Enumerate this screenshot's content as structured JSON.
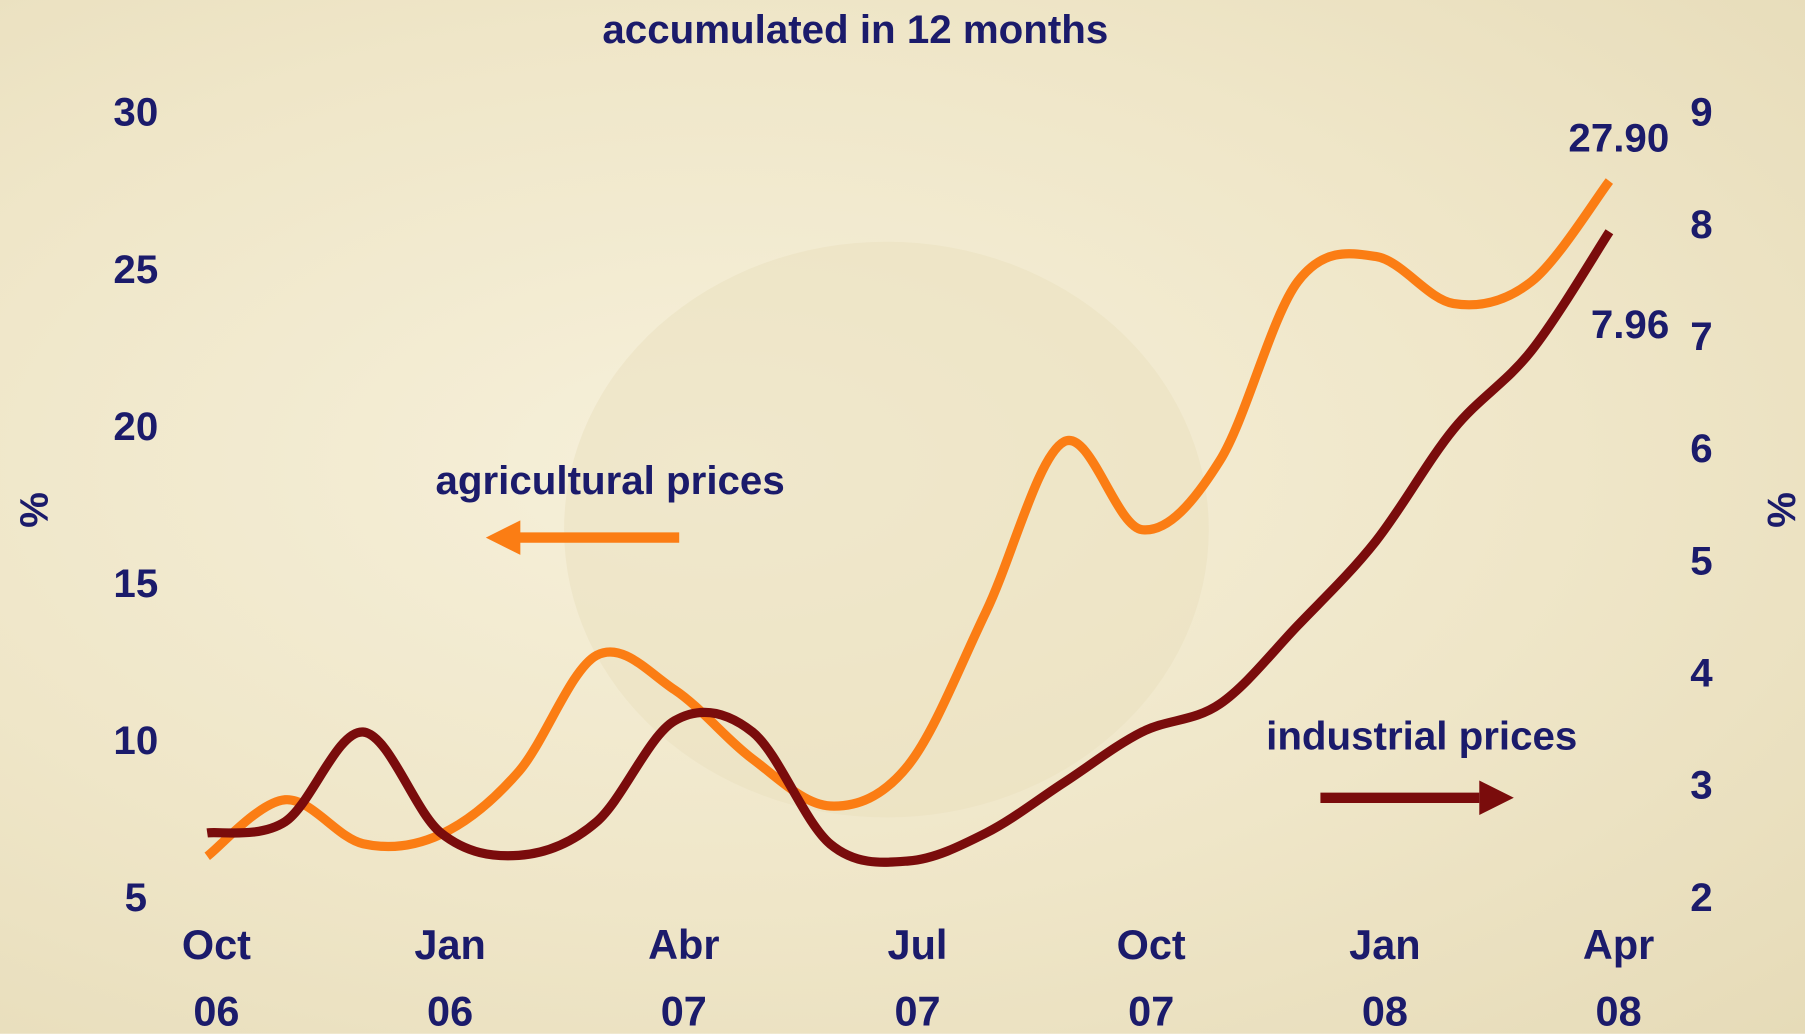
{
  "chart_data": {
    "type": "line",
    "title": "accumulated in 12 months",
    "categories": [
      "Oct 06",
      null,
      null,
      "Jan 06",
      null,
      null,
      "Abr 07",
      null,
      null,
      "Jul 07",
      null,
      null,
      "Oct 07",
      null,
      null,
      "Jan 08",
      null,
      null,
      "Apr 08"
    ],
    "series": [
      {
        "name": "agricultural prices",
        "color": "#fb7d14",
        "values": [
          6.4,
          8.2,
          6.8,
          7.1,
          9.1,
          12.8,
          11.7,
          9.5,
          8.0,
          9.3,
          14.2,
          19.6,
          16.8,
          19.0,
          24.7,
          25.5,
          24.0,
          24.7,
          27.9
        ],
        "value_labels": [
          null,
          null,
          null,
          null,
          null,
          null,
          null,
          null,
          null,
          null,
          null,
          null,
          null,
          null,
          null,
          null,
          null,
          null,
          "27.90"
        ]
      },
      {
        "name": "industrial prices",
        "color": "#7a0c0c",
        "axis": "y2",
        "values": [
          2.6,
          2.7,
          3.5,
          2.6,
          2.4,
          2.7,
          3.6,
          3.5,
          2.5,
          2.35,
          2.6,
          3.05,
          3.5,
          3.75,
          4.45,
          5.2,
          6.2,
          6.9,
          7.96
        ]
      }
    ],
    "ylabel": "%",
    "y2label": "%",
    "ylim": [
      5,
      30
    ],
    "yticks": [
      5,
      10,
      15,
      20,
      25,
      30
    ],
    "y2lim": [
      2,
      9
    ],
    "y2ticks": [
      2,
      3,
      4,
      5,
      6,
      7,
      8,
      9
    ],
    "grid": false
  }
}
